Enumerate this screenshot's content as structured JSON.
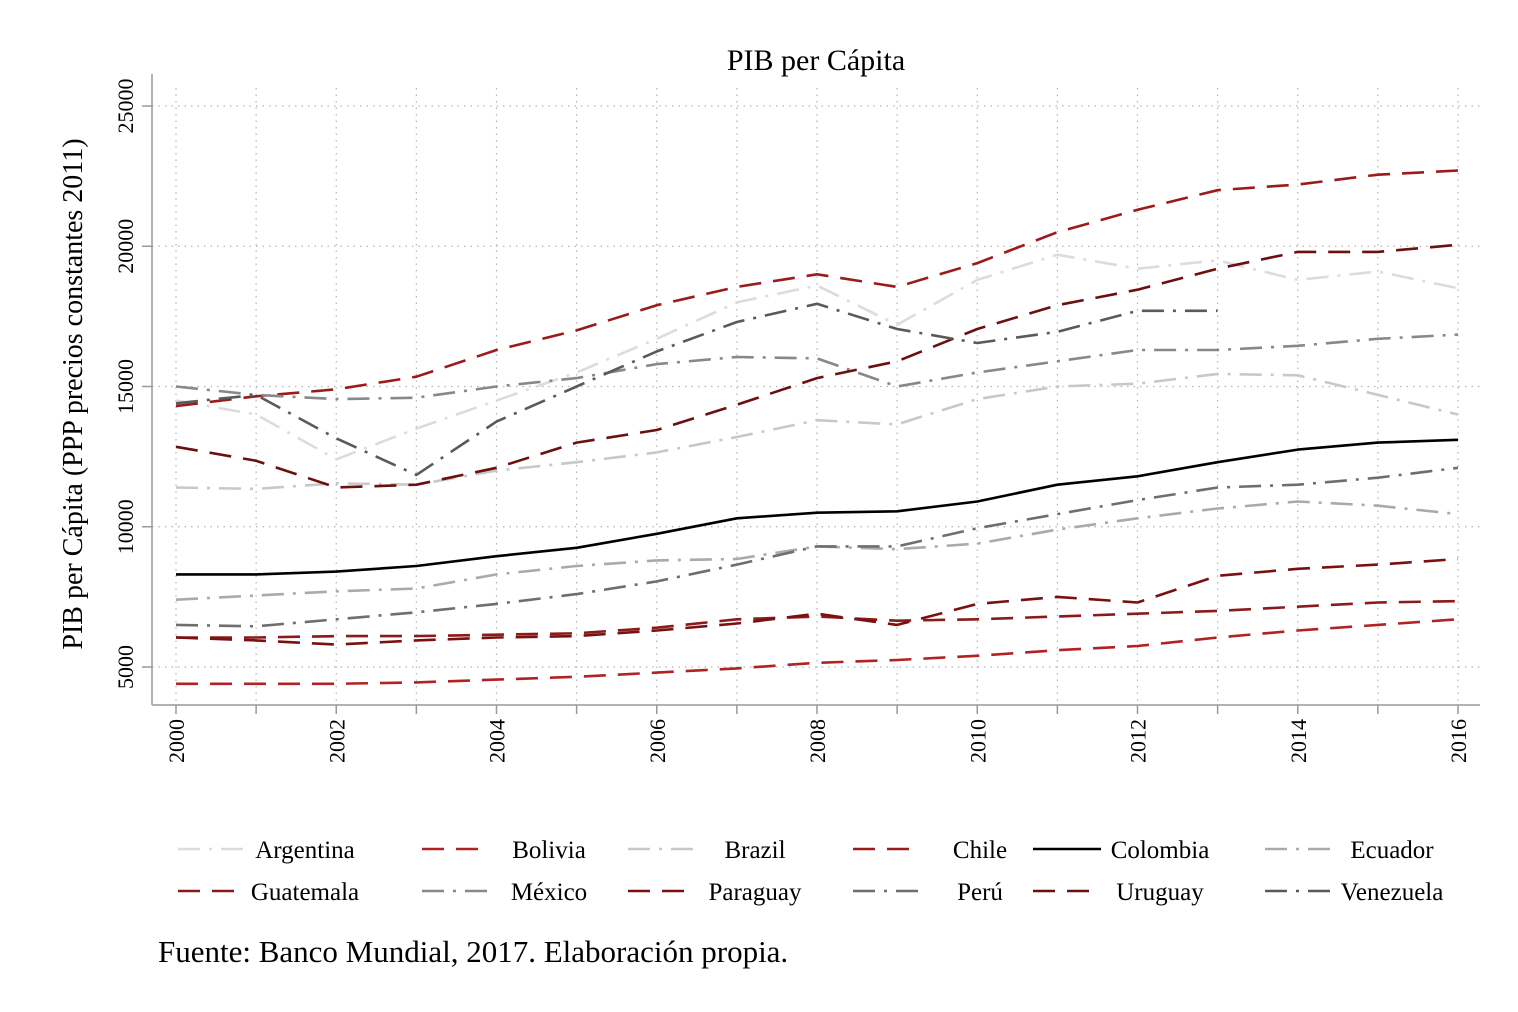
{
  "chart_data": {
    "type": "line",
    "title": "PIB per Cápita",
    "xlabel": "",
    "ylabel": "PIB per Cápita (PPP precios constantes 2011)",
    "source": "Fuente: Banco Mundial, 2017. Elaboración propia.",
    "xlim": [
      2000,
      2016
    ],
    "ylim": [
      3600,
      25000
    ],
    "x_ticks": [
      "2000",
      "2002",
      "2004",
      "2006",
      "2008",
      "2010",
      "2012",
      "2014",
      "2016"
    ],
    "y_ticks": [
      "5000",
      "10000",
      "15000",
      "20000",
      "25000"
    ],
    "grid": "on",
    "legend_position": "bottom",
    "x": [
      2000,
      2001,
      2002,
      2003,
      2004,
      2005,
      2006,
      2007,
      2008,
      2009,
      2010,
      2011,
      2012,
      2013,
      2014,
      2015,
      2016
    ],
    "series": [
      {
        "name": "Argentina",
        "color": "#dcdcdc",
        "dash": "dashdot",
        "values": [
          14500,
          14000,
          12400,
          13500,
          14500,
          15500,
          16700,
          18000,
          18600,
          17200,
          18800,
          19700,
          19200,
          19500,
          18800,
          19100,
          18500
        ]
      },
      {
        "name": "Bolivia",
        "color": "#b22222",
        "dash": "dash",
        "values": [
          4400,
          4400,
          4400,
          4450,
          4550,
          4650,
          4800,
          4950,
          5150,
          5250,
          5400,
          5600,
          5750,
          6050,
          6300,
          6500,
          6700
        ]
      },
      {
        "name": "Brazil",
        "color": "#c8c8c8",
        "dash": "dashdot",
        "values": [
          11400,
          11350,
          11550,
          11500,
          12000,
          12300,
          12650,
          13200,
          13800,
          13650,
          14550,
          15000,
          15100,
          15450,
          15400,
          14700,
          14000
        ]
      },
      {
        "name": "Chile",
        "color": "#9b1b1b",
        "dash": "dash",
        "values": [
          14300,
          14650,
          14900,
          15350,
          16300,
          17000,
          17900,
          18550,
          19000,
          18550,
          19400,
          20500,
          21300,
          22000,
          22200,
          22550,
          22700
        ]
      },
      {
        "name": "Colombia",
        "color": "#000000",
        "dash": "solid",
        "values": [
          8300,
          8300,
          8400,
          8600,
          8950,
          9250,
          9750,
          10300,
          10500,
          10550,
          10900,
          11500,
          11800,
          12300,
          12750,
          13000,
          13100
        ]
      },
      {
        "name": "Ecuador",
        "color": "#aaaaaa",
        "dash": "dashdot",
        "values": [
          7400,
          7550,
          7700,
          7800,
          8300,
          8600,
          8800,
          8850,
          9300,
          9200,
          9400,
          9900,
          10300,
          10650,
          10900,
          10750,
          10450
        ]
      },
      {
        "name": "Guatemala",
        "color": "#8b1a1a",
        "dash": "dash",
        "values": [
          6050,
          6050,
          6100,
          6100,
          6150,
          6200,
          6400,
          6700,
          6800,
          6650,
          6700,
          6800,
          6900,
          7000,
          7150,
          7300,
          7350
        ]
      },
      {
        "name": "México",
        "color": "#888888",
        "dash": "dashdot",
        "values": [
          15000,
          14700,
          14550,
          14600,
          15000,
          15300,
          15800,
          16050,
          16000,
          15000,
          15500,
          15900,
          16300,
          16300,
          16450,
          16700,
          16850
        ]
      },
      {
        "name": "Paraguay",
        "color": "#7a1010",
        "dash": "dash",
        "values": [
          6050,
          5950,
          5800,
          5950,
          6050,
          6100,
          6300,
          6550,
          6900,
          6500,
          7250,
          7500,
          7300,
          8250,
          8500,
          8650,
          8850
        ]
      },
      {
        "name": "Perú",
        "color": "#6e6e6e",
        "dash": "dashdot",
        "values": [
          6500,
          6450,
          6700,
          6950,
          7250,
          7600,
          8050,
          8650,
          9300,
          9300,
          9950,
          10450,
          10950,
          11400,
          11500,
          11750,
          12100
        ]
      },
      {
        "name": "Uruguay",
        "color": "#6b0f0f",
        "dash": "dash",
        "values": [
          12850,
          12350,
          11400,
          11500,
          12100,
          13000,
          13450,
          14350,
          15300,
          15900,
          17050,
          17900,
          18450,
          19200,
          19800,
          19800,
          20050
        ]
      },
      {
        "name": "Venezuela",
        "color": "#5a5a5a",
        "dash": "dashdot",
        "values": [
          14400,
          14700,
          13150,
          11850,
          13750,
          15000,
          16250,
          17300,
          17950,
          17050,
          16550,
          16950,
          17700,
          17700,
          null,
          null,
          null
        ]
      }
    ]
  }
}
